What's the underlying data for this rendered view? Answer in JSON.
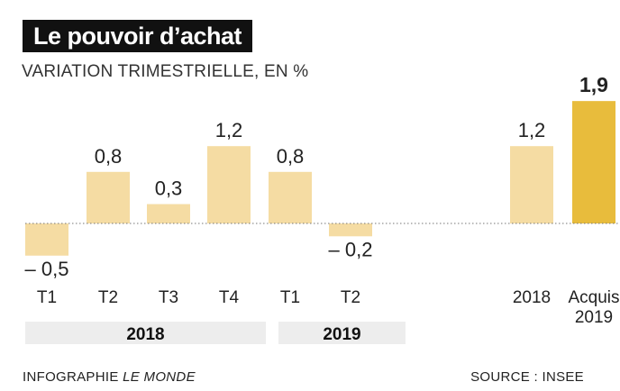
{
  "header": {
    "title": "Le pouvoir d’achat",
    "subtitle": "VARIATION TRIMESTRIELLE, EN %"
  },
  "footer": {
    "credit_prefix": "INFOGRAPHIE ",
    "credit_name": "LE MONDE",
    "source": "SOURCE : INSEE"
  },
  "chart_data": {
    "type": "bar",
    "title": "Le pouvoir d’achat",
    "subtitle": "VARIATION TRIMESTRIELLE, EN %",
    "categories": [
      "T1",
      "T2",
      "T3",
      "T4",
      "T1",
      "T2",
      "2018",
      "Acquis 2019"
    ],
    "values": [
      -0.5,
      0.8,
      0.3,
      1.2,
      0.8,
      -0.2,
      1.2,
      1.9
    ],
    "value_labels": [
      "– 0,5",
      "0,8",
      "0,3",
      "1,2",
      "0,8",
      "– 0,2",
      "1,2",
      "1,9"
    ],
    "highlighted_index": 7,
    "groups": [
      {
        "label": "2018",
        "categories": [
          "T1",
          "T2",
          "T3",
          "T4"
        ]
      },
      {
        "label": "2019",
        "categories": [
          "T1",
          "T2"
        ]
      }
    ],
    "colors": {
      "bar": "#f5dca3",
      "highlight": "#e8bc3c",
      "zero_line": "#777777",
      "group_band": "#ededed"
    },
    "xlabel": "",
    "ylabel": "",
    "grid": false
  }
}
